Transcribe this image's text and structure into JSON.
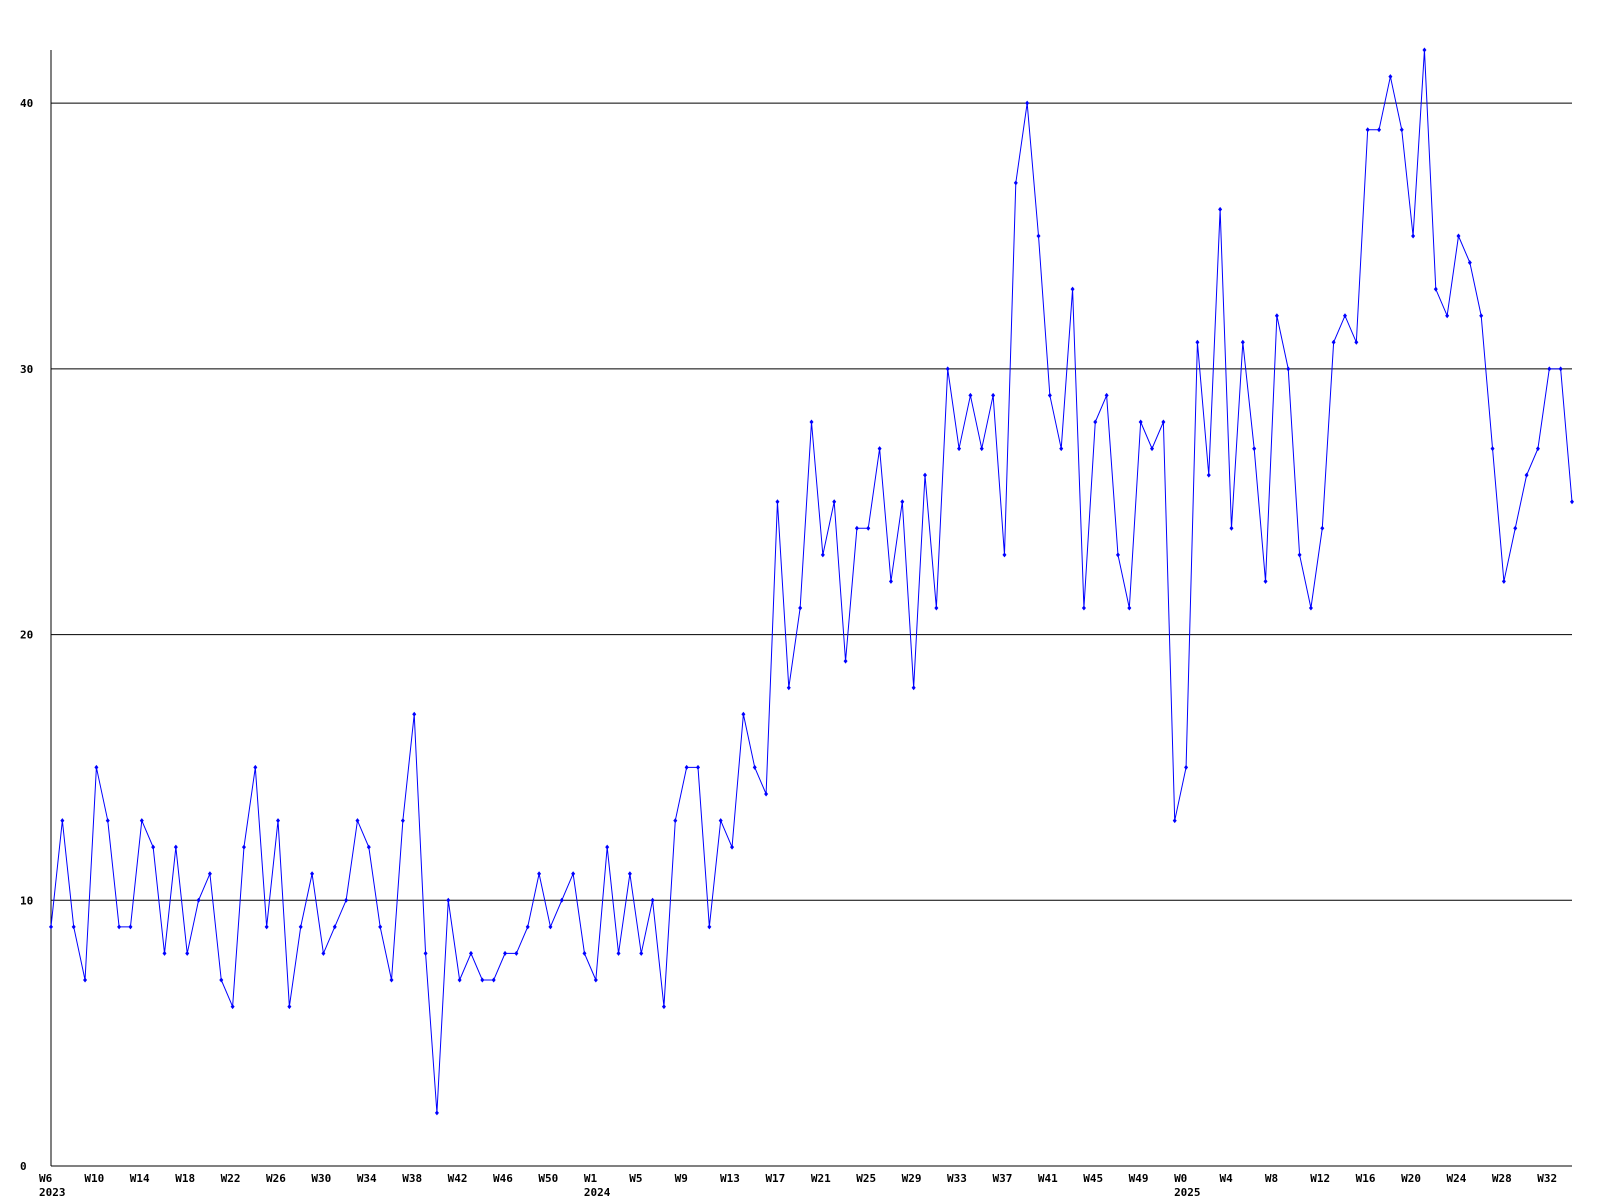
{
  "chart_data": {
    "type": "line",
    "categories": [
      "W6",
      null,
      null,
      null,
      "W10",
      null,
      null,
      null,
      "W14",
      null,
      null,
      null,
      "W18",
      null,
      null,
      null,
      "W22",
      null,
      null,
      null,
      "W26",
      null,
      null,
      null,
      "W30",
      null,
      null,
      null,
      "W34",
      null,
      null,
      null,
      "W38",
      null,
      null,
      null,
      "W42",
      null,
      null,
      null,
      "W46",
      null,
      null,
      null,
      "W50",
      null,
      null,
      null,
      "W1",
      null,
      null,
      null,
      "W5",
      null,
      null,
      null,
      "W9",
      null,
      null,
      null,
      "W13",
      null,
      null,
      null,
      "W17",
      null,
      null,
      null,
      "W21",
      null,
      null,
      null,
      "W25",
      null,
      null,
      null,
      "W29",
      null,
      null,
      null,
      "W33",
      null,
      null,
      null,
      "W37",
      null,
      null,
      null,
      "W41",
      null,
      null,
      null,
      "W45",
      null,
      null,
      null,
      "W49",
      null,
      null,
      null,
      "W0",
      null,
      null,
      null,
      "W4",
      null,
      null,
      null,
      "W8",
      null,
      null,
      null,
      "W12",
      null,
      null,
      null,
      "W16",
      null,
      null,
      null,
      "W20",
      null,
      null,
      null,
      "W24",
      null,
      null,
      null,
      "W28",
      null,
      null,
      null,
      "W32",
      null,
      null
    ],
    "category_years": [
      "2023",
      null,
      null,
      null,
      null,
      null,
      null,
      null,
      null,
      null,
      null,
      null,
      null,
      null,
      null,
      null,
      null,
      null,
      null,
      null,
      null,
      null,
      null,
      null,
      null,
      null,
      null,
      null,
      null,
      null,
      null,
      null,
      null,
      null,
      null,
      null,
      null,
      null,
      null,
      null,
      null,
      null,
      null,
      null,
      null,
      null,
      null,
      null,
      "2024",
      null,
      null,
      null,
      null,
      null,
      null,
      null,
      null,
      null,
      null,
      null,
      null,
      null,
      null,
      null,
      null,
      null,
      null,
      null,
      null,
      null,
      null,
      null,
      null,
      null,
      null,
      null,
      null,
      null,
      null,
      null,
      null,
      null,
      null,
      null,
      null,
      null,
      null,
      null,
      null,
      null,
      null,
      null,
      null,
      null,
      null,
      null,
      null,
      null,
      null,
      null,
      "2025",
      null,
      null,
      null,
      null,
      null,
      null,
      null,
      null,
      null,
      null,
      null,
      null,
      null,
      null,
      null,
      null,
      null,
      null,
      null,
      null,
      null,
      null,
      null,
      null,
      null,
      null,
      null,
      null,
      null,
      null,
      null,
      null,
      null,
      null
    ],
    "series": [
      {
        "color": "#0000ff",
        "values": [
          9,
          13,
          9,
          7,
          15,
          13,
          9,
          9,
          13,
          12,
          8,
          12,
          8,
          10,
          11,
          7,
          6,
          12,
          15,
          9,
          13,
          6,
          9,
          11,
          8,
          9,
          10,
          13,
          12,
          9,
          7,
          13,
          17,
          8,
          2,
          10,
          7,
          8,
          7,
          7,
          8,
          8,
          9,
          11,
          9,
          10,
          11,
          8,
          7,
          12,
          8,
          11,
          8,
          10,
          6,
          13,
          15,
          15,
          9,
          13,
          12,
          17,
          15,
          14,
          25,
          18,
          21,
          28,
          23,
          25,
          19,
          24,
          24,
          27,
          22,
          25,
          18,
          26,
          21,
          30,
          27,
          29,
          27,
          29,
          23,
          37,
          40,
          35,
          29,
          27,
          33,
          21,
          28,
          29,
          23,
          21,
          28,
          27,
          28,
          13,
          15,
          31,
          26,
          36,
          24,
          31,
          27,
          22,
          32,
          30,
          23,
          21,
          24,
          31,
          32,
          31,
          39,
          39,
          41,
          39,
          35,
          42,
          33,
          32,
          35,
          34,
          32,
          27,
          22,
          24,
          26,
          27,
          30,
          30,
          25
        ]
      }
    ],
    "ylim": [
      0,
      42
    ],
    "yticks": [
      0,
      10,
      20,
      30,
      40
    ],
    "grid": true
  }
}
